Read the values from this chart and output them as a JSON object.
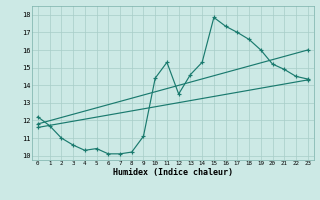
{
  "xlabel": "Humidex (Indice chaleur)",
  "bg_color": "#cce9e5",
  "line_color": "#1a7a6e",
  "grid_color": "#a8cdc8",
  "xlim": [
    -0.5,
    23.5
  ],
  "ylim": [
    9.75,
    18.5
  ],
  "xticks": [
    0,
    1,
    2,
    3,
    4,
    5,
    6,
    7,
    8,
    9,
    10,
    11,
    12,
    13,
    14,
    15,
    16,
    17,
    18,
    19,
    20,
    21,
    22,
    23
  ],
  "yticks": [
    10,
    11,
    12,
    13,
    14,
    15,
    16,
    17,
    18
  ],
  "line1_x": [
    0,
    1,
    2,
    3,
    4,
    5,
    6,
    7,
    8,
    9,
    10,
    11,
    12,
    13,
    14,
    15,
    16,
    17,
    18,
    19,
    20,
    21,
    22,
    23
  ],
  "line1_y": [
    12.2,
    11.7,
    11.0,
    10.6,
    10.3,
    10.4,
    10.1,
    10.1,
    10.2,
    11.1,
    14.4,
    15.3,
    13.5,
    14.6,
    15.3,
    17.85,
    17.35,
    17.0,
    16.6,
    16.0,
    15.2,
    14.9,
    14.5,
    14.35
  ],
  "line2_x": [
    0,
    23
  ],
  "line2_y": [
    11.8,
    16.0
  ],
  "line3_x": [
    0,
    23
  ],
  "line3_y": [
    11.6,
    14.3
  ]
}
